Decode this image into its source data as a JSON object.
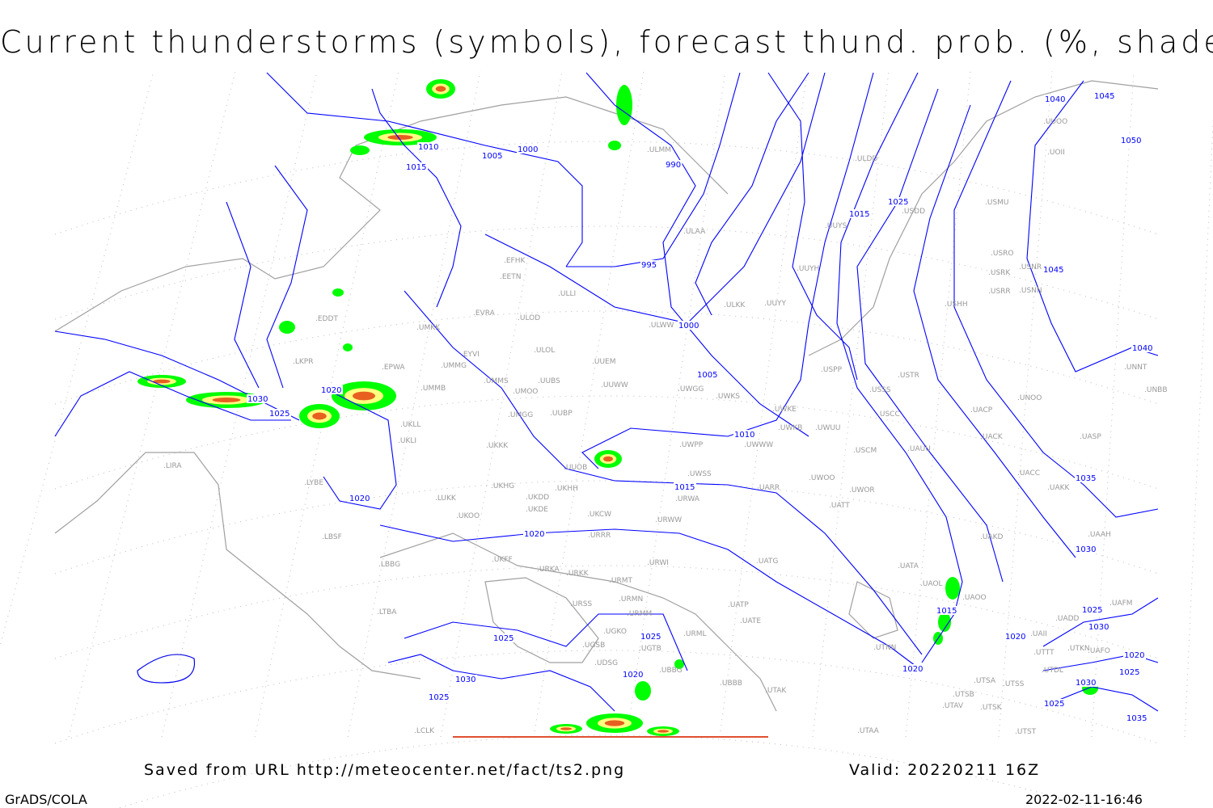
{
  "title": "Current thunderstorms (symbols), forecast thund. prob. (%, shaded)",
  "footer": {
    "source": "Saved from URL http://meteocenter.net/fact/ts2.png",
    "valid": "Valid: 20220211 16Z",
    "software": "GrADS/COLA",
    "timestamp": "2022-02-11-16:46"
  },
  "colors": {
    "isobar": "#0000ff",
    "coast": "#a0a0a0",
    "prob_low": "#00ff00",
    "prob_mid": "#ffff80",
    "prob_high": "#e86020",
    "prob_max": "#c83010"
  },
  "stations": [
    "EDDT",
    "LKPR",
    "EPWA",
    "UMMG",
    "UMMB",
    "EYVI",
    "UMKK",
    "EVRA",
    "EETN",
    "EFHK",
    "ULLI",
    "ULOD",
    "ULOL",
    "UUEM",
    "UMMS",
    "UMOO",
    "UUBS",
    "UUWW",
    "UWGG",
    "UWKS",
    "UWKE",
    "UWKB",
    "UWUU",
    "UMGG",
    "UUBP",
    "UKLL",
    "UKLI",
    "UKKK",
    "UUOB",
    "UWPP",
    "UWWW",
    "UWSS",
    "UKHH",
    "UKDD",
    "UKHG",
    "LUKK",
    "UKOO",
    "UKDE",
    "UKCW",
    "URWA",
    "UARR",
    "UWOO",
    "UWOR",
    "UATT",
    "URWW",
    "URRR",
    "UKFF",
    "URKA",
    "URKK",
    "URWI",
    "UATG",
    "URMT",
    "URSS",
    "URMN",
    "URMM",
    "URML",
    "UATE",
    "UATP",
    "LIRA",
    "LYBE",
    "LBSF",
    "LBBG",
    "LTBA",
    "UGSB",
    "UGKO",
    "UGTB",
    "UDSG",
    "UBBG",
    "UBBB",
    "UTAK",
    "UTAA",
    "LCLK",
    "UTNN",
    "UATA",
    "UAOL",
    "UAOO",
    "UAKD",
    "UAAH",
    "UAKK",
    "UACC",
    "UASP",
    "UACK",
    "UAUU",
    "USCM",
    "USCC",
    "USSS",
    "UACP",
    "USTR",
    "USPP",
    "UNOO",
    "UNBB",
    "UNNT",
    "USHH",
    "USRR",
    "USNN",
    "USRK",
    "USRO",
    "USNR",
    "USMU",
    "USDD",
    "UUYS",
    "ULDD",
    "ULAA",
    "ULKK",
    "UUYY",
    "UUYH",
    "UUOO",
    "UOII",
    "ULMM",
    "ULWW",
    "UTSA",
    "UTSS",
    "UTSB",
    "UTAV",
    "UTSK",
    "UTST",
    "UTTT",
    "UTDL",
    "UTKN",
    "UAFO",
    "UADD",
    "UAII",
    "UAFM"
  ],
  "isobar_labels": [
    "1040",
    "1045",
    "1050",
    "990",
    "1000",
    "1005",
    "1010",
    "1015",
    "1015",
    "1025",
    "995",
    "1000",
    "1045",
    "1040",
    "1005",
    "1010",
    "1030",
    "1025",
    "1020",
    "1015",
    "1020",
    "1020",
    "1035",
    "1030",
    "1015",
    "1020",
    "1025",
    "1025",
    "1020",
    "1030",
    "1025",
    "1025",
    "1030",
    "1020",
    "1020",
    "1030",
    "1025",
    "1025",
    "1035"
  ]
}
